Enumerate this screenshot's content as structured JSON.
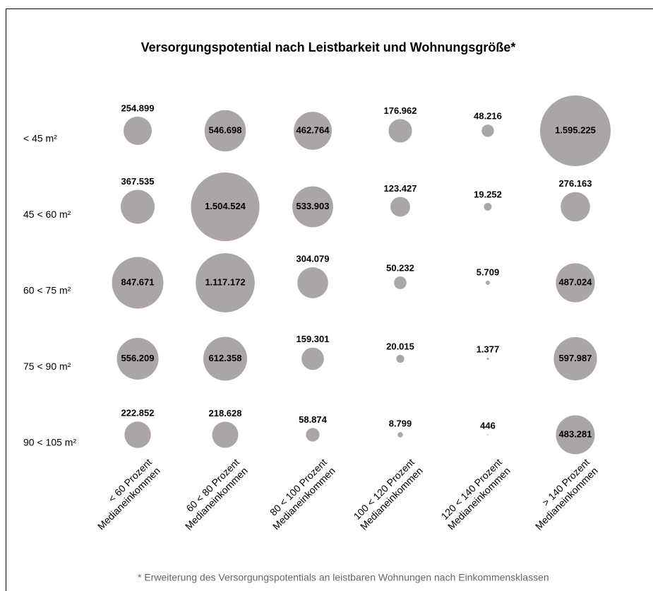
{
  "chart_data": {
    "type": "bubble",
    "title": "Versorgungspotential nach Leistbarkeit und Wohnungsgröße*",
    "footnote": "* Erweiterung des Versorgungspotentials an leistbaren Wohnungen nach Einkommensklassen",
    "color": "#aba5a5",
    "categories": [
      [
        "< 60 Prozent",
        "Medianeinkommen"
      ],
      [
        "60 < 80 Prozent",
        "Medianeinkommen"
      ],
      [
        "80 < 100 Prozent",
        "Medianeinkommen"
      ],
      [
        "100 < 120 Prozent",
        "Medianeinkommen"
      ],
      [
        "120 < 140 Prozent",
        "Medianeinkommen"
      ],
      [
        "> 140 Prozent",
        "Medianeinkommen"
      ]
    ],
    "series": [
      {
        "name": "< 45 m²",
        "values": [
          254899,
          546698,
          462764,
          176962,
          48216,
          1595225
        ],
        "value_labels": [
          "254.899",
          "546.698",
          "462.764",
          "176.962",
          "48.216",
          "1.595.225"
        ]
      },
      {
        "name": "45 < 60 m²",
        "values": [
          367535,
          1504524,
          533903,
          123427,
          19252,
          276163
        ],
        "value_labels": [
          "367.535",
          "1.504.524",
          "533.903",
          "123.427",
          "19.252",
          "276.163"
        ]
      },
      {
        "name": "60 < 75 m²",
        "values": [
          847671,
          1117172,
          304079,
          50232,
          5709,
          487024
        ],
        "value_labels": [
          "847.671",
          "1.117.172",
          "304.079",
          "50.232",
          "5.709",
          "487.024"
        ]
      },
      {
        "name": "75 < 90 m²",
        "values": [
          556209,
          612358,
          159301,
          20015,
          1377,
          597987
        ],
        "value_labels": [
          "556.209",
          "612.358",
          "159.301",
          "20.015",
          "1.377",
          "597.987"
        ]
      },
      {
        "name": "90 < 105 m²",
        "values": [
          222852,
          218628,
          58874,
          8799,
          446,
          483281
        ],
        "value_labels": [
          "222.852",
          "218.628",
          "58.874",
          "8.799",
          "446",
          "483.281"
        ]
      }
    ]
  }
}
